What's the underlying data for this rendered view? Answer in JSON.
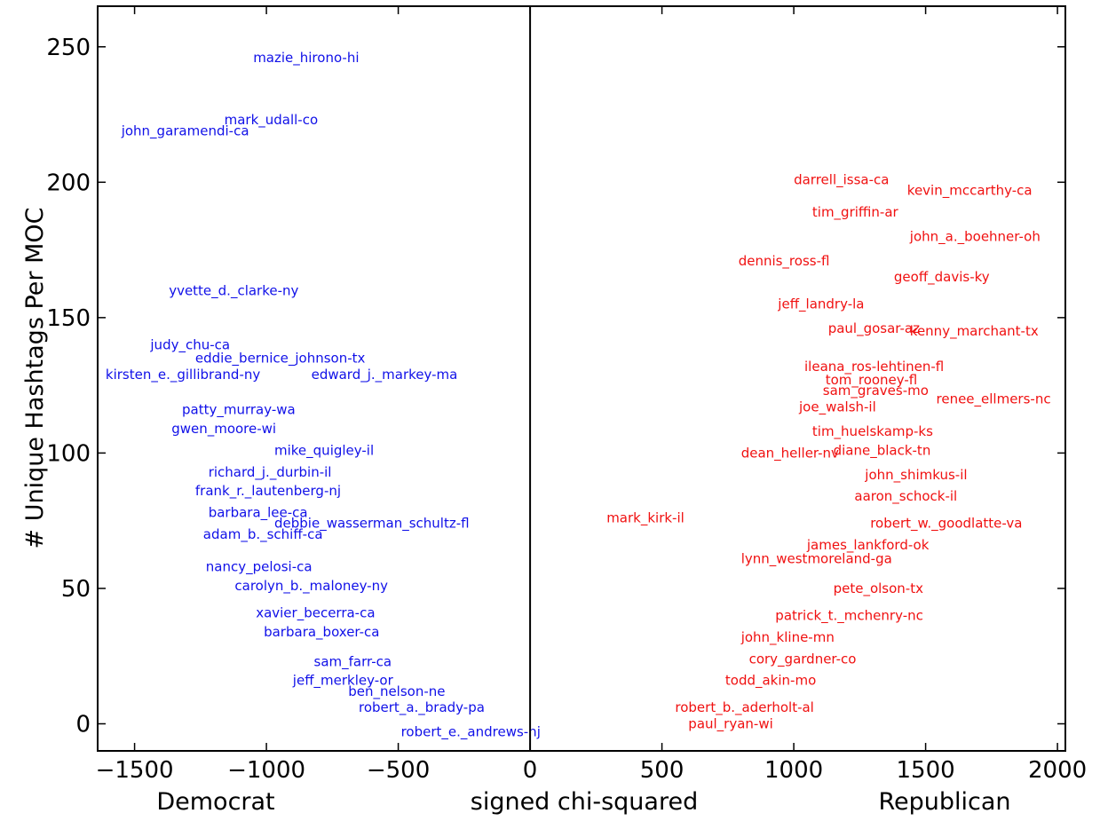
{
  "chart_data": {
    "type": "scatter",
    "xlabel": "signed chi-squared",
    "ylabel": "# Unique Hashtags Per MOC",
    "x_side_labels": {
      "left": "Democrat",
      "right": "Republican"
    },
    "xlim": [
      -1640,
      2030
    ],
    "ylim": [
      -10,
      265
    ],
    "xticks": [
      -1500,
      -1000,
      -500,
      0,
      500,
      1000,
      1500,
      2000
    ],
    "yticks": [
      0,
      50,
      100,
      150,
      200,
      250
    ],
    "grid": false,
    "colors": {
      "Democrat": "#1010e8",
      "Republican": "#f01010"
    },
    "points": [
      {
        "label": "mazie_hirono-hi",
        "x": -1050,
        "y": 246,
        "party": "Democrat"
      },
      {
        "label": "mark_udall-co",
        "x": -1160,
        "y": 223,
        "party": "Democrat"
      },
      {
        "label": "john_garamendi-ca",
        "x": -1550,
        "y": 219,
        "party": "Democrat"
      },
      {
        "label": "yvette_d._clarke-ny",
        "x": -1370,
        "y": 160,
        "party": "Democrat"
      },
      {
        "label": "judy_chu-ca",
        "x": -1440,
        "y": 140,
        "party": "Democrat"
      },
      {
        "label": "eddie_bernice_johnson-tx",
        "x": -1270,
        "y": 135,
        "party": "Democrat"
      },
      {
        "label": "kirsten_e._gillibrand-ny",
        "x": -1610,
        "y": 129,
        "party": "Democrat"
      },
      {
        "label": "edward_j._markey-ma",
        "x": -830,
        "y": 129,
        "party": "Democrat"
      },
      {
        "label": "patty_murray-wa",
        "x": -1320,
        "y": 116,
        "party": "Democrat"
      },
      {
        "label": "gwen_moore-wi",
        "x": -1360,
        "y": 109,
        "party": "Democrat"
      },
      {
        "label": "mike_quigley-il",
        "x": -970,
        "y": 101,
        "party": "Democrat"
      },
      {
        "label": "richard_j._durbin-il",
        "x": -1220,
        "y": 93,
        "party": "Democrat"
      },
      {
        "label": "frank_r._lautenberg-nj",
        "x": -1270,
        "y": 86,
        "party": "Democrat"
      },
      {
        "label": "barbara_lee-ca",
        "x": -1220,
        "y": 78,
        "party": "Democrat"
      },
      {
        "label": "debbie_wasserman_schultz-fl",
        "x": -970,
        "y": 74,
        "party": "Democrat"
      },
      {
        "label": "adam_b._schiff-ca",
        "x": -1240,
        "y": 70,
        "party": "Democrat"
      },
      {
        "label": "nancy_pelosi-ca",
        "x": -1230,
        "y": 58,
        "party": "Democrat"
      },
      {
        "label": "carolyn_b._maloney-ny",
        "x": -1120,
        "y": 51,
        "party": "Democrat"
      },
      {
        "label": "xavier_becerra-ca",
        "x": -1040,
        "y": 41,
        "party": "Democrat"
      },
      {
        "label": "barbara_boxer-ca",
        "x": -1010,
        "y": 34,
        "party": "Democrat"
      },
      {
        "label": "sam_farr-ca",
        "x": -820,
        "y": 23,
        "party": "Democrat"
      },
      {
        "label": "jeff_merkley-or",
        "x": -900,
        "y": 16,
        "party": "Democrat"
      },
      {
        "label": "ben_nelson-ne",
        "x": -690,
        "y": 12,
        "party": "Democrat"
      },
      {
        "label": "robert_a._brady-pa",
        "x": -650,
        "y": 6,
        "party": "Democrat"
      },
      {
        "label": "robert_e._andrews-nj",
        "x": -490,
        "y": -3,
        "party": "Democrat"
      },
      {
        "label": "darrell_issa-ca",
        "x": 1000,
        "y": 201,
        "party": "Republican"
      },
      {
        "label": "kevin_mccarthy-ca",
        "x": 1430,
        "y": 197,
        "party": "Republican"
      },
      {
        "label": "tim_griffin-ar",
        "x": 1070,
        "y": 189,
        "party": "Republican"
      },
      {
        "label": "john_a._boehner-oh",
        "x": 1440,
        "y": 180,
        "party": "Republican"
      },
      {
        "label": "dennis_ross-fl",
        "x": 790,
        "y": 171,
        "party": "Republican"
      },
      {
        "label": "geoff_davis-ky",
        "x": 1380,
        "y": 165,
        "party": "Republican"
      },
      {
        "label": "jeff_landry-la",
        "x": 940,
        "y": 155,
        "party": "Republican"
      },
      {
        "label": "paul_gosar-az",
        "x": 1130,
        "y": 146,
        "party": "Republican"
      },
      {
        "label": "kenny_marchant-tx",
        "x": 1440,
        "y": 145,
        "party": "Republican"
      },
      {
        "label": "ileana_ros-lehtinen-fl",
        "x": 1040,
        "y": 132,
        "party": "Republican"
      },
      {
        "label": "tom_rooney-fl",
        "x": 1120,
        "y": 127,
        "party": "Republican"
      },
      {
        "label": "sam_graves-mo",
        "x": 1110,
        "y": 123,
        "party": "Republican"
      },
      {
        "label": "renee_ellmers-nc",
        "x": 1540,
        "y": 120,
        "party": "Republican"
      },
      {
        "label": "joe_walsh-il",
        "x": 1020,
        "y": 117,
        "party": "Republican"
      },
      {
        "label": "tim_huelskamp-ks",
        "x": 1070,
        "y": 108,
        "party": "Republican"
      },
      {
        "label": "dean_heller-nv",
        "x": 800,
        "y": 100,
        "party": "Republican"
      },
      {
        "label": "diane_black-tn",
        "x": 1150,
        "y": 101,
        "party": "Republican"
      },
      {
        "label": "john_shimkus-il",
        "x": 1270,
        "y": 92,
        "party": "Republican"
      },
      {
        "label": "aaron_schock-il",
        "x": 1230,
        "y": 84,
        "party": "Republican"
      },
      {
        "label": "robert_w._goodlatte-va",
        "x": 1290,
        "y": 74,
        "party": "Republican"
      },
      {
        "label": "mark_kirk-il",
        "x": 290,
        "y": 76,
        "party": "Republican"
      },
      {
        "label": "james_lankford-ok",
        "x": 1050,
        "y": 66,
        "party": "Republican"
      },
      {
        "label": "lynn_westmoreland-ga",
        "x": 800,
        "y": 61,
        "party": "Republican"
      },
      {
        "label": "pete_olson-tx",
        "x": 1150,
        "y": 50,
        "party": "Republican"
      },
      {
        "label": "patrick_t._mchenry-nc",
        "x": 930,
        "y": 40,
        "party": "Republican"
      },
      {
        "label": "john_kline-mn",
        "x": 800,
        "y": 32,
        "party": "Republican"
      },
      {
        "label": "cory_gardner-co",
        "x": 830,
        "y": 24,
        "party": "Republican"
      },
      {
        "label": "todd_akin-mo",
        "x": 740,
        "y": 16,
        "party": "Republican"
      },
      {
        "label": "robert_b._aderholt-al",
        "x": 550,
        "y": 6,
        "party": "Republican"
      },
      {
        "label": "paul_ryan-wi",
        "x": 600,
        "y": 0,
        "party": "Republican"
      }
    ]
  }
}
